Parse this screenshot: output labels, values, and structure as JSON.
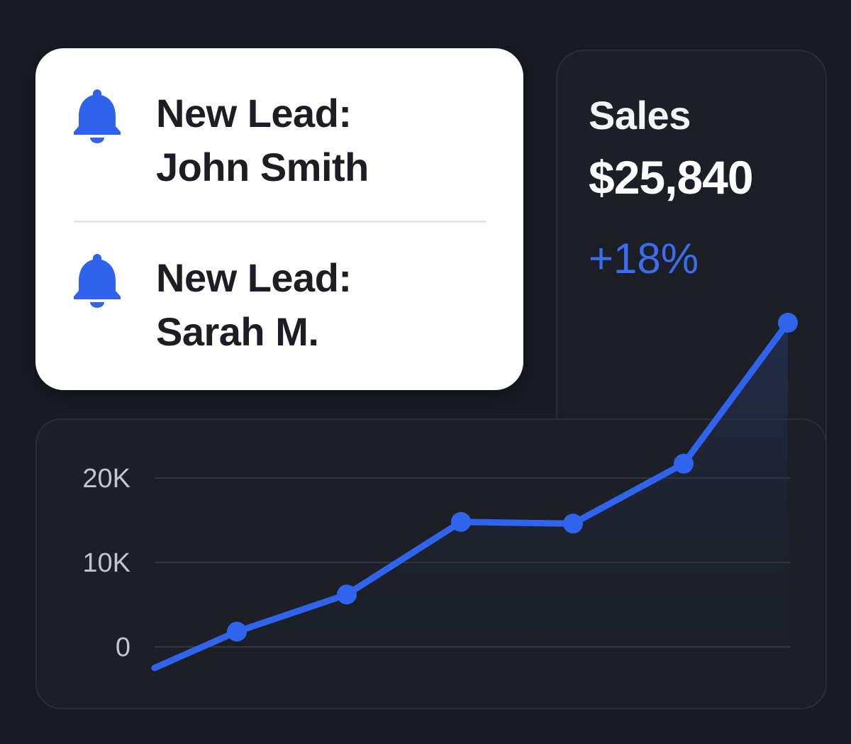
{
  "notifications": [
    {
      "line1": "New Lead:",
      "line2": "John Smith",
      "icon": "bell-icon"
    },
    {
      "line1": "New Lead:",
      "line2": "Sarah M.",
      "icon": "bell-icon"
    }
  ],
  "sales": {
    "title": "Sales",
    "value": "$25,840",
    "change": "+18%"
  },
  "colors": {
    "accent": "#3064ec",
    "background": "#181b22",
    "card": "#1c1f26",
    "notification_card": "#ffffff"
  },
  "chart_data": {
    "type": "line",
    "y_ticks": [
      "0",
      "10K",
      "20K"
    ],
    "y_tick_values": [
      0,
      10000,
      20000
    ],
    "ylim": [
      -2700,
      39000
    ],
    "x": [
      0,
      1,
      2,
      3,
      4,
      5,
      6
    ],
    "values": [
      -2500,
      1800,
      6200,
      14800,
      14600,
      21700,
      38400
    ],
    "area_fill": true,
    "grid": true,
    "title": "",
    "xlabel": "",
    "ylabel": ""
  }
}
